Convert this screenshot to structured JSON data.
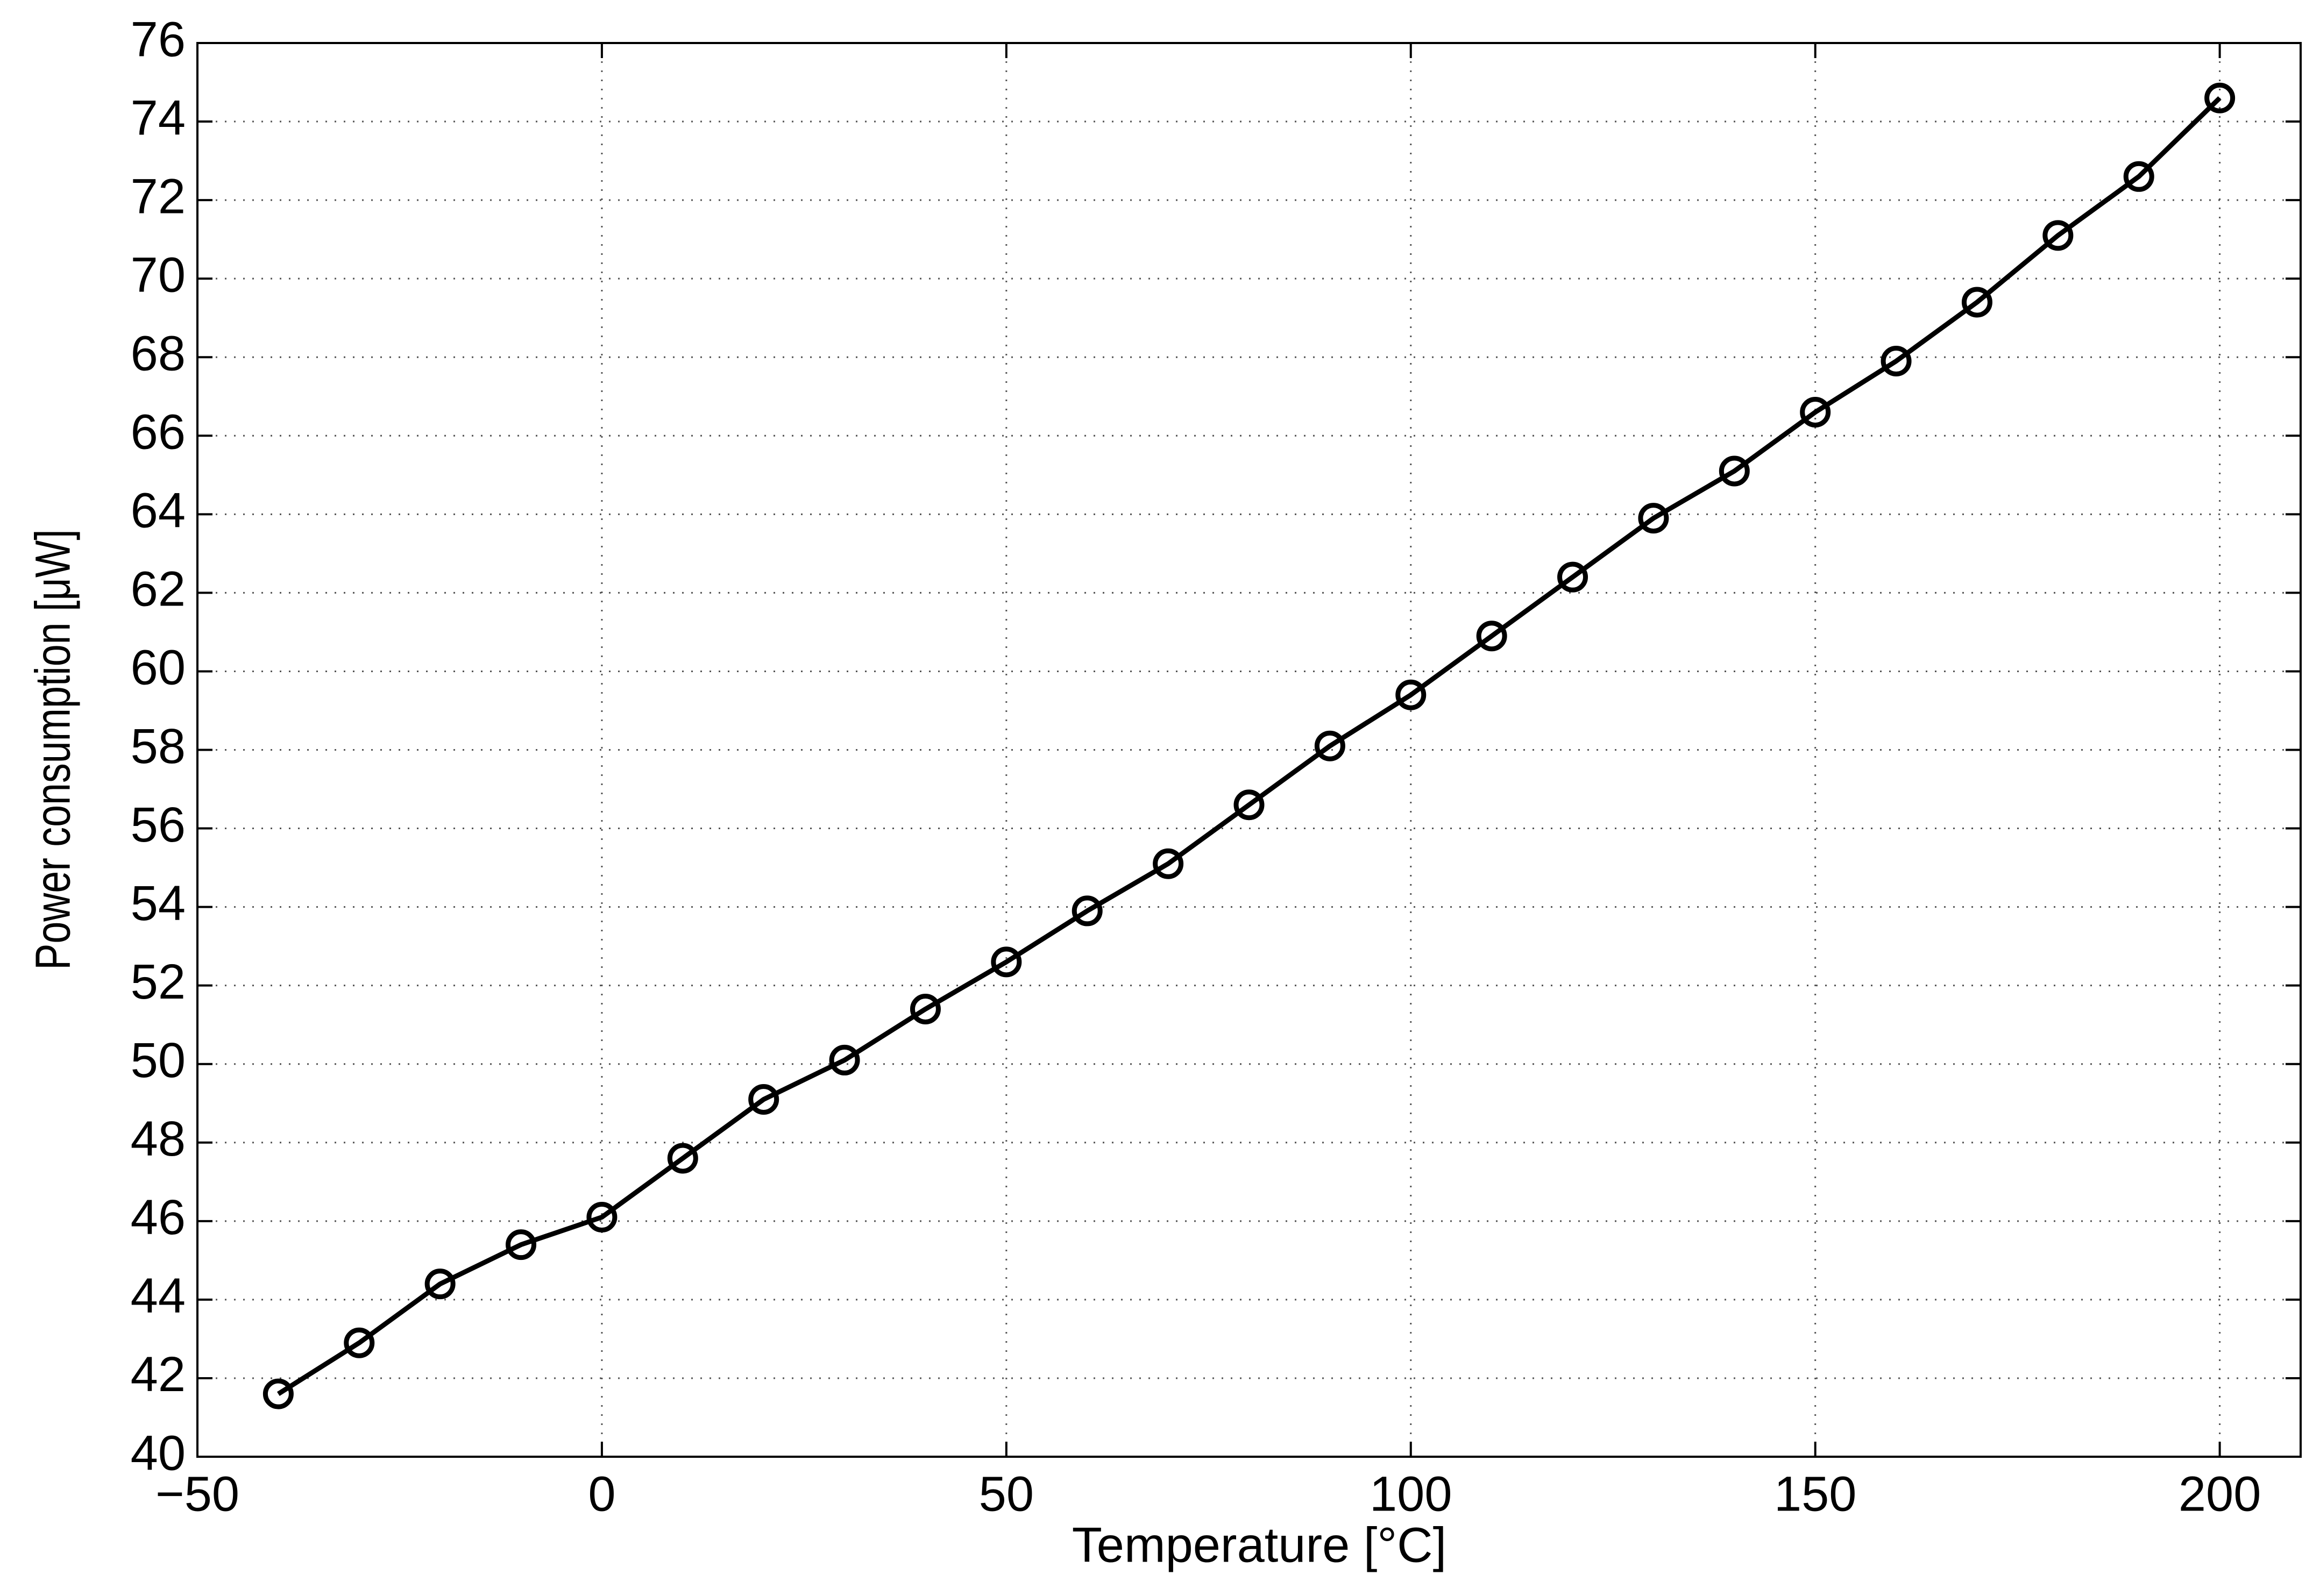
{
  "chart_data": {
    "type": "line",
    "x_label": "Temperature [°C]",
    "y_label": "Power consumption [μW]",
    "x": [
      -40,
      -30,
      -20,
      -10,
      0,
      10,
      20,
      30,
      40,
      50,
      60,
      70,
      80,
      90,
      100,
      110,
      120,
      130,
      140,
      150,
      160,
      170,
      180,
      190,
      200
    ],
    "series": [
      {
        "name": "Power consumption",
        "color": "#000000",
        "marker": "circle",
        "values": [
          41.6,
          42.9,
          44.4,
          45.4,
          46.1,
          47.6,
          49.1,
          50.1,
          51.4,
          52.6,
          53.9,
          55.1,
          56.6,
          58.1,
          59.4,
          60.9,
          62.4,
          63.9,
          65.1,
          66.6,
          67.9,
          69.4,
          71.1,
          72.6,
          74.6
        ]
      }
    ],
    "xlim": [
      -50,
      210
    ],
    "ylim": [
      40,
      76
    ],
    "xticks": [
      {
        "value": -50,
        "label": "−50"
      },
      0,
      50,
      100,
      150,
      200
    ],
    "yticks": [
      40,
      42,
      44,
      46,
      48,
      50,
      52,
      54,
      56,
      58,
      60,
      62,
      64,
      66,
      68,
      70,
      72,
      74,
      76
    ],
    "grid": true
  }
}
